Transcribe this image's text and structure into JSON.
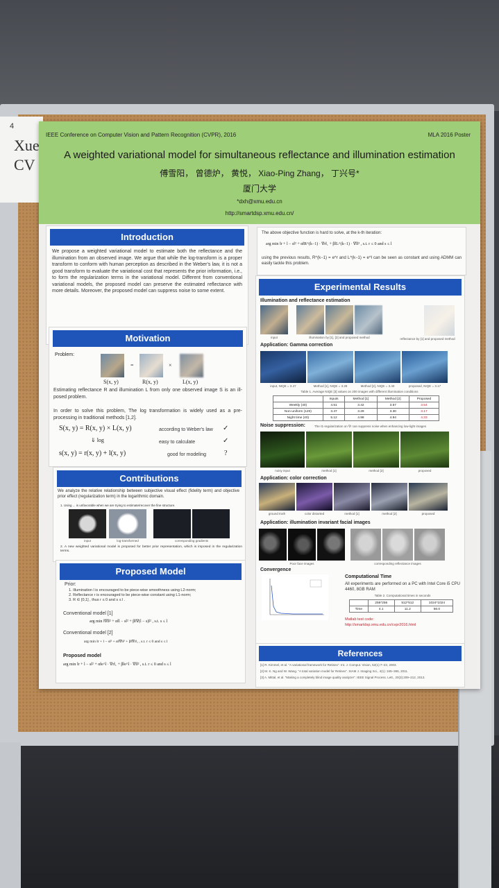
{
  "label": {
    "number": "4",
    "text": "Xuey\nCV"
  },
  "header": {
    "conference": "IEEE Conference on Computer Vision and Pattern Recognition (CVPR), 2016",
    "tag": "MLA 2016 Poster",
    "title": "A weighted variational model for simultaneous reflectance and illumination estimation",
    "authors": "傅雪阳，  曾德炉，  黄悦，  Xiao-Ping Zhang，  丁兴号*",
    "affiliation": "厦门大学",
    "email": "*dxh@xmu.edu.cn",
    "url": "http://smartdsp.xmu.edu.cn/"
  },
  "introduction": {
    "heading": "Introduction",
    "text": "We propose a weighted variational model to estimate both the reflectance and the illumination from an observed image. We argue that while the log-transform is a proper transform to conform with human perception as described in the Weber's law, it is not a good transform to evaluate the variational cost that represents the prior information, i.e., to form the regularization terms in the variational model. Different from conventional variational models, the proposed model can preserve the estimated reflectance with more details. Moreover, the proposed model can suppress noise to some extent."
  },
  "motivation": {
    "heading": "Motivation",
    "problem_label": "Problem:",
    "eq_labels": [
      "S(x, y)",
      "=",
      "R(x, y)",
      "×",
      "L(x, y)"
    ],
    "problem_text": "Estimating reflectance R and illumination L from only one observed image S is an ill-posed problem.",
    "solve_text": "In order to solve this problem, The log transformation is widely used as a pre-processing in traditional methods [1,2].",
    "rows": [
      {
        "formula": "S(x, y) = R(x, y) × L(x, y)",
        "note": "according to Weber's law",
        "mark": "✓"
      },
      {
        "formula": "⇓ log",
        "note": "easy to calculate",
        "mark": "✓"
      },
      {
        "formula": "s(x, y) = r(x, y) + l(x, y)",
        "note": "good for modeling",
        "mark": "?"
      }
    ]
  },
  "contributions": {
    "heading": "Contributions",
    "text": "We analyze the relative relationship between subjective visual effect (fidelity term) and objective prior effect (regularization term) in the logarithmic domain.",
    "item1": "1.  Using ... is unfavorable when we are trying to estimate/recover the fine structure.",
    "captions": [
      "input",
      "log-transformed",
      "corresponding gradients"
    ],
    "item2": "2.  A new weighted variational model is proposed for better prior representation, which is imposed in the regularization terms."
  },
  "proposed": {
    "heading": "Proposed Model",
    "prior_label": "Prior:",
    "priors": [
      "1.  Illumination l is encouraged to be piece-wise smoothness using L2-norm;",
      "2.  Reflectance r is encouraged to be piece-wise constant using L1-norm;",
      "3.  R ∈ [0,1] , thus r ≤ 0 and s ≤ l ."
    ],
    "conv1_label": "Conventional model [1]",
    "conv1": "arg min ‖∇l‖² + α‖l − s‖² + β‖∇(l − s)‖² ,  s.t.  s ≤ l",
    "conv2_label": "Conventional model [2]",
    "conv2": "arg min ‖r + l − s‖² + α‖∇l‖² + β‖∇r‖₁ ,  s.t.  r ≤ 0 and s ≤ l",
    "model_label": "Proposed model",
    "model": "arg min ‖r + l − s‖² + α‖e^l · ∇r‖₁ + β‖e^l · ∇l‖² ,  s.t.  r ≤ 0 and s ≤ l"
  },
  "admm": {
    "text1": "The above objective function is hard to solve, at the k-th iteration:",
    "formula": "arg min ‖r + l − s‖² + α‖R^(k−1) · ∇r‖₁ + β‖L^(k−1) · ∇l‖² ,  s.t.  r ≤ 0 and s ≤ l",
    "text2": "using the previous results, R^(k−1) = e^r and L^(k−1) = e^l can be seen as constant and using ADMM can easily tackle this problem."
  },
  "experimental": {
    "heading": "Experimental Results",
    "sec1": "Illumination and reflectance estimation",
    "sec1_captions": [
      "input",
      "illumination by [1], [2] and proposed method",
      "reflectance by [1] and proposed method"
    ],
    "sec2": "Application: Gamma correction",
    "sec2_captions": [
      "input, NIQE = 3.47",
      "Method [1], NIQE = 3.28",
      "Method [2], NIQE = 3.40",
      "proposed, NIQE = 3.17"
    ],
    "table_caption": "Table 1. Average NIQE [3] values on 200 images with different illumination conditions",
    "table_header": [
      "",
      "Inputs",
      "Method [1]",
      "Method [2]",
      "Proposed"
    ],
    "table_rows": [
      [
        "Weekly (40)",
        "4.51",
        "3.42",
        "3.57",
        "3.54"
      ],
      [
        "Non-uniform (120)",
        "3.47",
        "3.29",
        "3.30",
        "3.17"
      ],
      [
        "Night time (40)",
        "5.12",
        "4.98",
        "4.94",
        "4.33"
      ]
    ],
    "sec3": "Noise suppression:",
    "sec3_note": "The ℓ1-regularization on ∇r can suppress noise when enhancing low-light images",
    "sec3_captions": [
      "noisy input",
      "method [1]",
      "method [2]",
      "proposed"
    ],
    "sec4": "Application: color correction",
    "sec4_captions": [
      "ground truth",
      "color distorted",
      "method [1]",
      "method [2]",
      "proposed"
    ],
    "sec5": "Application: illumination invariant facial images",
    "sec5_captions": [
      "Poor face images",
      "corresponding reflectance images"
    ],
    "convergence": "Convergence",
    "comp_heading": "Computational Time",
    "comp_text": "All experiments are performed on a PC with Intel Core i5 CPU 4460, 8GB RAM",
    "comp_table_caption": "Table 2. Computational times in seconds",
    "comp_header": [
      "",
      "256*256",
      "512*512",
      "1024*1024"
    ],
    "comp_row": [
      "Time",
      "4.1",
      "11.2",
      "56.0"
    ],
    "code_label": "Matlab test code:",
    "code_url": "http://smartdsp.xmu.edu.cn/cvpr2016.html"
  },
  "references": {
    "heading": "References",
    "items": [
      "[1] R. Kimmel, et al. \"A variational framework for Retinex\". Int. J. Comput. Vision, 52(1):7–23, 2003.",
      "[2] M. K. Ng and W. Wang. \"A total variation model for Retinex\". SIAM J. Imaging Sci., 4(1): 345–365, 2011.",
      "[3] A. Mittal, et al. \"Making a completely blind image quality analyzer\". IEEE Signal Process. Lett., 20(3):209–212, 2013."
    ]
  }
}
